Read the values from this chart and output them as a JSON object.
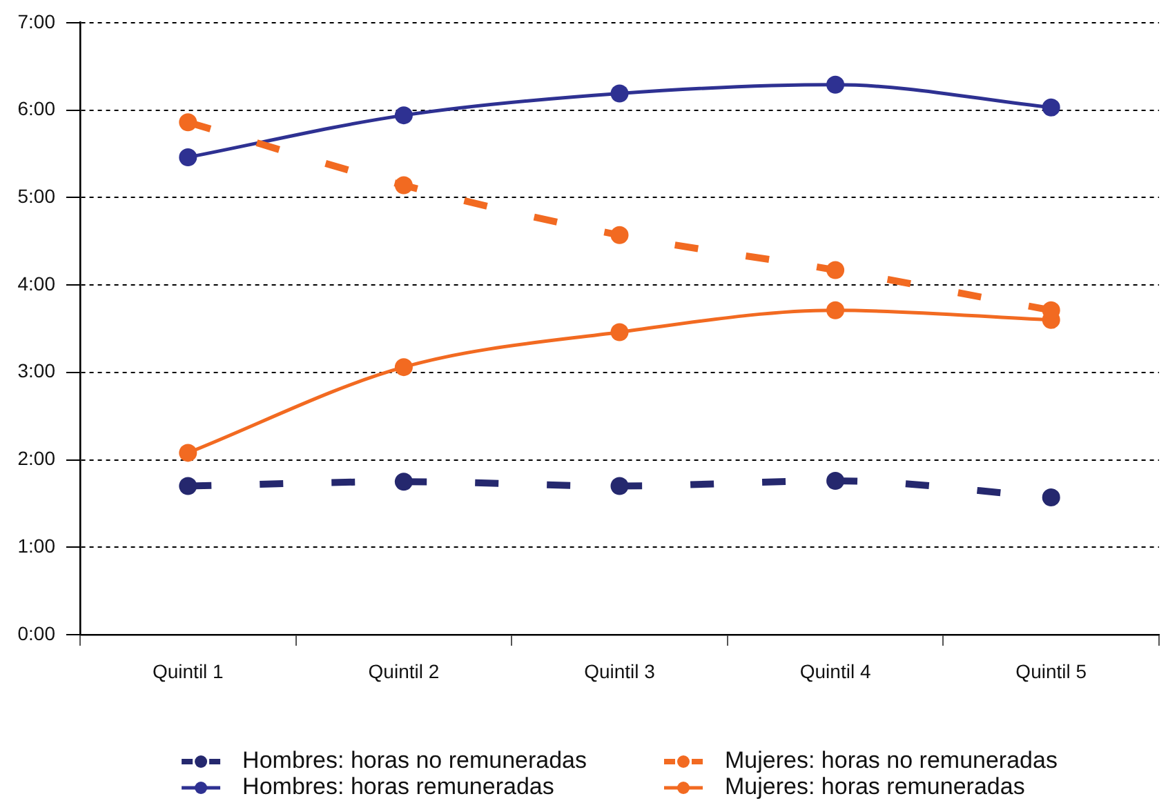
{
  "chart_data": {
    "type": "line",
    "categories": [
      "Quintil 1",
      "Quintil 2",
      "Quintil 3",
      "Quintil 4",
      "Quintil 5"
    ],
    "series": [
      {
        "name": "Hombres: horas no remuneradas",
        "color": "#25286e",
        "line_style": "dashed",
        "values": [
          1.7,
          1.75,
          1.7,
          1.76,
          1.57
        ]
      },
      {
        "name": "Mujeres: horas no remuneradas",
        "color": "#f26a21",
        "line_style": "dashed",
        "values": [
          5.86,
          5.14,
          4.57,
          4.17,
          3.71
        ]
      },
      {
        "name": "Hombres: horas remuneradas",
        "color": "#2e3192",
        "line_style": "solid",
        "values": [
          5.46,
          5.94,
          6.19,
          6.29,
          6.03
        ]
      },
      {
        "name": "Mujeres: horas remuneradas",
        "color": "#f26a21",
        "line_style": "solid",
        "values": [
          2.08,
          3.06,
          3.46,
          3.71,
          3.6
        ]
      }
    ],
    "ylim": [
      0,
      7
    ],
    "yticks": [
      {
        "value": 0,
        "label": "0:00"
      },
      {
        "value": 1,
        "label": "1:00"
      },
      {
        "value": 2,
        "label": "2:00"
      },
      {
        "value": 3,
        "label": "3:00"
      },
      {
        "value": 4,
        "label": "4:00"
      },
      {
        "value": 5,
        "label": "5:00"
      },
      {
        "value": 6,
        "label": "6:00"
      },
      {
        "value": 7,
        "label": "7:00"
      }
    ],
    "grid": "y",
    "legend": "bottom",
    "marker": "circle"
  }
}
